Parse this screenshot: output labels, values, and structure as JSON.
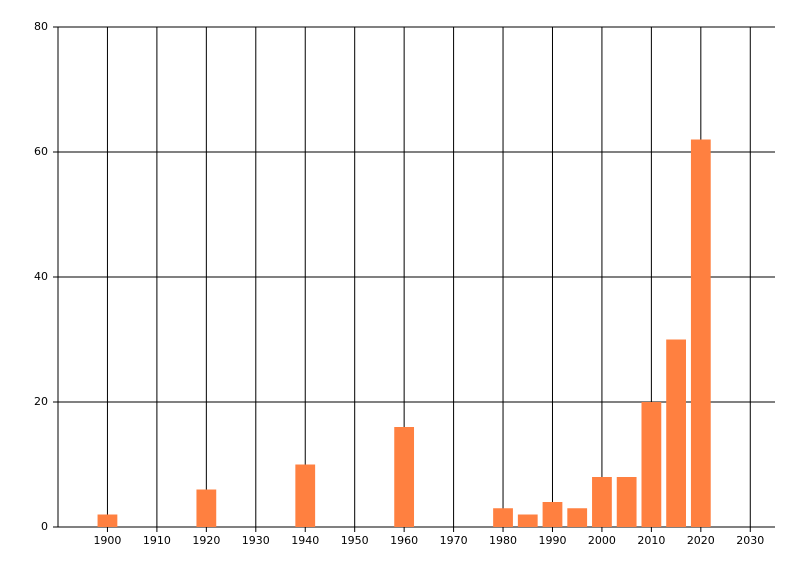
{
  "chart_data": {
    "type": "bar",
    "x": [
      1900,
      1920,
      1940,
      1960,
      1980,
      1985,
      1990,
      1995,
      2000,
      2005,
      2010,
      2015,
      2020
    ],
    "values": [
      2,
      6,
      10,
      16,
      3,
      2,
      4,
      3,
      8,
      8,
      20,
      30,
      62
    ],
    "color": "#ff8040",
    "xlim": [
      1890,
      2035
    ],
    "xticks": [
      1900,
      1910,
      1920,
      1930,
      1940,
      1950,
      1960,
      1970,
      1980,
      1990,
      2000,
      2010,
      2020,
      2030
    ],
    "ylim": [
      0,
      80
    ],
    "yticks": [
      0,
      20,
      40,
      60,
      80
    ],
    "grid": true
  }
}
